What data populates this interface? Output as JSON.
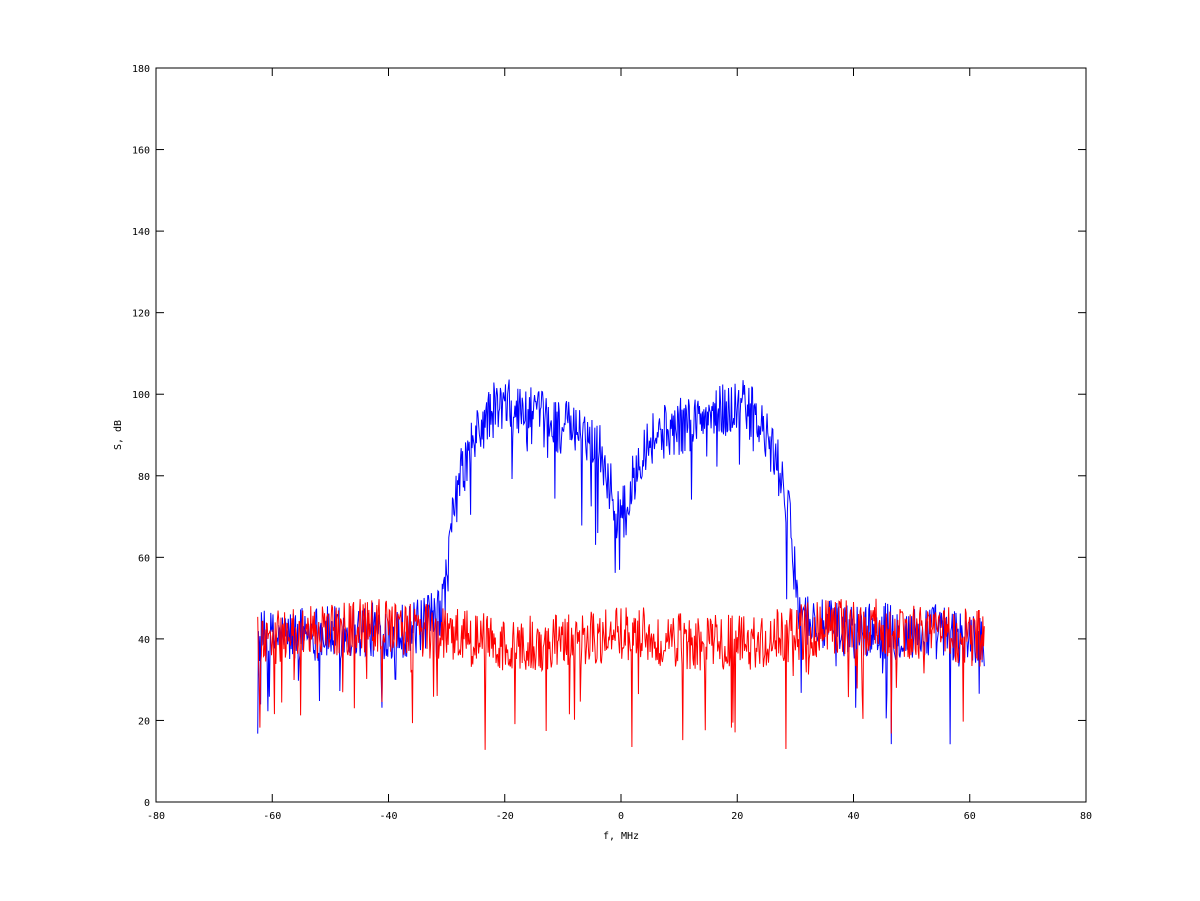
{
  "chart_data": {
    "type": "line",
    "title": "",
    "xlabel": "f, MHz",
    "ylabel": "S, dB",
    "xlim": [
      -80,
      80
    ],
    "ylim": [
      0,
      180
    ],
    "xticks": [
      -80,
      -60,
      -40,
      -20,
      0,
      20,
      40,
      60,
      80
    ],
    "yticks": [
      0,
      20,
      40,
      60,
      80,
      100,
      120,
      140,
      160,
      180
    ],
    "xtick_labels": [
      "-80",
      "-60",
      "-40",
      "-20",
      "0",
      "20",
      "40",
      "60",
      "80"
    ],
    "ytick_labels": [
      "0",
      "20",
      "40",
      "60",
      "80",
      "100",
      "120",
      "140",
      "160",
      "180"
    ],
    "grid": true,
    "x_range_data": [
      -62.5,
      62.5
    ],
    "series": [
      {
        "color": "#0000ff",
        "description_points": [
          [
            -62,
            40
          ],
          [
            -58,
            40
          ],
          [
            -54,
            42
          ],
          [
            -50,
            41
          ],
          [
            -46,
            42
          ],
          [
            -42,
            42
          ],
          [
            -38,
            42
          ],
          [
            -34,
            43
          ],
          [
            -31,
            46
          ],
          [
            -30,
            55
          ],
          [
            -29,
            68
          ],
          [
            -28,
            78
          ],
          [
            -26,
            86
          ],
          [
            -24,
            92
          ],
          [
            -22,
            96
          ],
          [
            -20,
            97
          ],
          [
            -18,
            96
          ],
          [
            -16,
            95
          ],
          [
            -14,
            94
          ],
          [
            -12,
            93
          ],
          [
            -10,
            92
          ],
          [
            -8,
            91
          ],
          [
            -6,
            90
          ],
          [
            -4,
            88
          ],
          [
            -3,
            84
          ],
          [
            -2,
            78
          ],
          [
            -1,
            72
          ],
          [
            0,
            70
          ],
          [
            1,
            72
          ],
          [
            2,
            78
          ],
          [
            3,
            84
          ],
          [
            4,
            88
          ],
          [
            6,
            90
          ],
          [
            8,
            91
          ],
          [
            10,
            92
          ],
          [
            12,
            93
          ],
          [
            14,
            94
          ],
          [
            16,
            95
          ],
          [
            18,
            96
          ],
          [
            20,
            97
          ],
          [
            22,
            96
          ],
          [
            24,
            92
          ],
          [
            26,
            86
          ],
          [
            28,
            78
          ],
          [
            29,
            68
          ],
          [
            30,
            55
          ],
          [
            31,
            46
          ],
          [
            34,
            43
          ],
          [
            38,
            42
          ],
          [
            42,
            42
          ],
          [
            46,
            42
          ],
          [
            50,
            41
          ],
          [
            54,
            42
          ],
          [
            58,
            40
          ],
          [
            62,
            40
          ]
        ],
        "noise_amplitude_db": 7
      },
      {
        "color": "#ff0000",
        "description_points": [
          [
            -62,
            40
          ],
          [
            -56,
            41
          ],
          [
            -50,
            42
          ],
          [
            -44,
            43
          ],
          [
            -38,
            43
          ],
          [
            -32,
            42
          ],
          [
            -26,
            40
          ],
          [
            -20,
            39
          ],
          [
            -14,
            39
          ],
          [
            -8,
            40
          ],
          [
            -2,
            41
          ],
          [
            0,
            42
          ],
          [
            2,
            41
          ],
          [
            8,
            40
          ],
          [
            14,
            39
          ],
          [
            20,
            39
          ],
          [
            26,
            40
          ],
          [
            32,
            42
          ],
          [
            38,
            43
          ],
          [
            44,
            43
          ],
          [
            50,
            42
          ],
          [
            56,
            41
          ],
          [
            62,
            40
          ]
        ],
        "noise_amplitude_db": 7
      }
    ]
  }
}
